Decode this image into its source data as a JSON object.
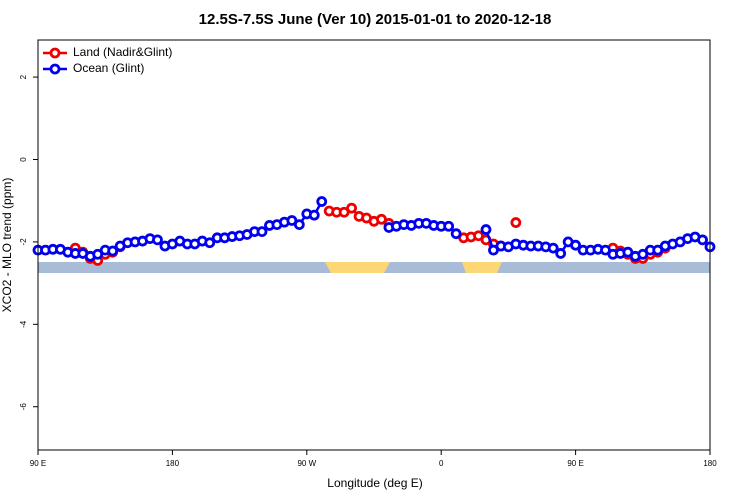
{
  "chart_data": {
    "type": "line",
    "title": "12.5S-7.5S June (Ver 10)   2015-01-01 to 2020-12-18",
    "x_label": "Longitude (deg E)",
    "y_label": "XCO2 - MLO trend (ppm)",
    "xlim": [
      90,
      540
    ],
    "ylim": [
      -7.05,
      2.9
    ],
    "xticks": [
      {
        "value": 90,
        "label": "90 E"
      },
      {
        "value": 180,
        "label": "180"
      },
      {
        "value": 270,
        "label": "90 W"
      },
      {
        "value": 360,
        "label": "0"
      },
      {
        "value": 450,
        "label": "90 E"
      },
      {
        "value": 540,
        "label": "180"
      }
    ],
    "yticks": [
      -6,
      -4,
      -2,
      0,
      2
    ],
    "legend": "top-left",
    "x": [
      90,
      95,
      100,
      105,
      110,
      115,
      120,
      125,
      130,
      135,
      140,
      145,
      150,
      155,
      160,
      165,
      170,
      175,
      180,
      185,
      190,
      195,
      200,
      205,
      210,
      215,
      220,
      225,
      230,
      235,
      240,
      245,
      250,
      255,
      260,
      265,
      270,
      275,
      280,
      285,
      290,
      295,
      300,
      305,
      310,
      315,
      320,
      325,
      330,
      335,
      340,
      345,
      350,
      355,
      360,
      365,
      370,
      375,
      380,
      385,
      390,
      395,
      400,
      405,
      410,
      415,
      420,
      425,
      430,
      435,
      440,
      445,
      450,
      455,
      460,
      465,
      470,
      475,
      480,
      485,
      490,
      495,
      500,
      505,
      510,
      515,
      520,
      525,
      530,
      535,
      540
    ],
    "series": [
      {
        "name": "Land (Nadir&Glint)",
        "color": "#ee0000",
        "values": [
          null,
          null,
          null,
          null,
          null,
          -2.15,
          -2.25,
          -2.4,
          -2.45,
          -2.3,
          -2.25,
          -2.12,
          null,
          null,
          null,
          null,
          null,
          null,
          null,
          null,
          null,
          null,
          null,
          null,
          null,
          null,
          null,
          null,
          null,
          null,
          null,
          null,
          null,
          null,
          null,
          null,
          null,
          null,
          null,
          -1.25,
          -1.28,
          -1.28,
          -1.18,
          -1.38,
          -1.42,
          -1.5,
          -1.45,
          -1.55,
          null,
          null,
          null,
          null,
          null,
          null,
          null,
          null,
          null,
          -1.9,
          -1.88,
          -1.85,
          -1.95,
          -2.05,
          -2.1,
          null,
          -1.53,
          null,
          null,
          null,
          null,
          null,
          null,
          null,
          null,
          null,
          null,
          null,
          null,
          -2.15,
          -2.22,
          -2.3,
          -2.4,
          -2.4,
          -2.3,
          -2.25,
          -2.15,
          null,
          null,
          null,
          null,
          null,
          null
        ]
      },
      {
        "name": "Ocean (Glint)",
        "color": "#0000ee",
        "values": [
          -2.2,
          -2.2,
          -2.18,
          -2.18,
          -2.25,
          -2.28,
          -2.28,
          -2.35,
          -2.3,
          -2.2,
          -2.22,
          -2.1,
          -2.02,
          -2.0,
          -1.98,
          -1.92,
          -1.95,
          -2.1,
          -2.05,
          -1.98,
          -2.05,
          -2.05,
          -1.98,
          -2.02,
          -1.9,
          -1.9,
          -1.87,
          -1.85,
          -1.82,
          -1.75,
          -1.75,
          -1.6,
          -1.58,
          -1.52,
          -1.48,
          -1.58,
          -1.32,
          -1.35,
          -1.02,
          null,
          null,
          null,
          null,
          null,
          null,
          null,
          null,
          -1.65,
          -1.62,
          -1.58,
          -1.6,
          -1.55,
          -1.55,
          -1.6,
          -1.62,
          -1.62,
          -1.8,
          null,
          null,
          null,
          -1.7,
          -2.2,
          -2.1,
          -2.12,
          -2.05,
          -2.08,
          -2.1,
          -2.1,
          -2.12,
          -2.15,
          -2.28,
          -2.0,
          -2.08,
          -2.2,
          -2.2,
          -2.18,
          -2.2,
          -2.3,
          -2.28,
          -2.25,
          -2.35,
          -2.3,
          -2.2,
          -2.2,
          -2.1,
          -2.05,
          -2.0,
          -1.92,
          -1.88,
          -1.95,
          -2.12
        ]
      }
    ]
  }
}
